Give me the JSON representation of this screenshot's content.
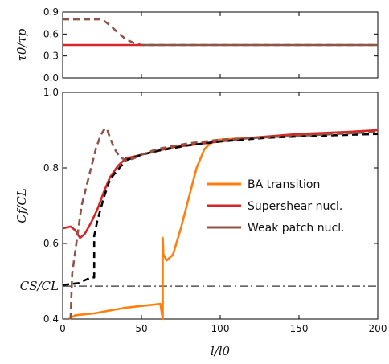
{
  "chart_data": [
    {
      "type": "line",
      "panel": "top",
      "ylabel": "τ0/τp",
      "xlim": [
        0,
        200
      ],
      "ylim": [
        0,
        0.9
      ],
      "yticks": [
        "0.0",
        "0.3",
        "0.6",
        "0.9"
      ],
      "grid": false,
      "series": [
        {
          "name": "Weak patch nucl.",
          "color": "#8c564b",
          "dash": true,
          "x": [
            0,
            12,
            25,
            30,
            35,
            40,
            45,
            50,
            200
          ],
          "y": [
            0.8,
            0.8,
            0.8,
            0.72,
            0.62,
            0.53,
            0.48,
            0.45,
            0.45
          ]
        },
        {
          "name": "Supershear nucl.",
          "color": "#d62728",
          "dash": false,
          "x": [
            0,
            50
          ],
          "y": [
            0.45,
            0.45
          ]
        },
        {
          "name": "Weak patch nucl.",
          "color": "#8c564b",
          "dash": false,
          "x": [
            50,
            200
          ],
          "y": [
            0.45,
            0.45
          ]
        }
      ]
    },
    {
      "type": "line",
      "panel": "bottom",
      "xlabel": "l/l0",
      "ylabel": "Cf/CL",
      "xlim": [
        0,
        200
      ],
      "ylim": [
        0.4,
        1.0
      ],
      "xticks": [
        "0",
        "50",
        "100",
        "150",
        "200"
      ],
      "yticks": [
        "0.4",
        "0.6",
        "0.8",
        "1.0"
      ],
      "grid": false,
      "legend_position": "center-right",
      "reference_line": {
        "label": "CS/CL",
        "y": 0.487,
        "color": "#555555",
        "style": "dash-dot"
      },
      "series": [
        {
          "name": "BA transition",
          "color": "#ff7f0e",
          "dash": false,
          "x": [
            4,
            8,
            20,
            40,
            62,
            63.5,
            63.5,
            64,
            66,
            70,
            75,
            80,
            85,
            90,
            95,
            100,
            120,
            140,
            160,
            180,
            200
          ],
          "y": [
            0.4,
            0.41,
            0.415,
            0.43,
            0.44,
            0.4,
            0.615,
            0.57,
            0.555,
            0.57,
            0.64,
            0.72,
            0.8,
            0.85,
            0.87,
            0.875,
            0.88,
            0.885,
            0.89,
            0.895,
            0.9
          ]
        },
        {
          "name": "Supershear nucl.",
          "color": "#d62728",
          "dash": false,
          "x": [
            0,
            5,
            8,
            11,
            14,
            18,
            22,
            26,
            30,
            35,
            40,
            50,
            60,
            70,
            80,
            100,
            120,
            150,
            180,
            200
          ],
          "y": [
            0.64,
            0.645,
            0.635,
            0.615,
            0.625,
            0.655,
            0.69,
            0.735,
            0.775,
            0.805,
            0.825,
            0.835,
            0.845,
            0.855,
            0.86,
            0.87,
            0.88,
            0.89,
            0.895,
            0.9
          ]
        },
        {
          "name": "",
          "color": "#000000",
          "dash": true,
          "x": [
            0,
            10,
            18,
            20,
            20,
            22,
            26,
            30,
            40,
            50,
            60,
            80,
            100,
            130,
            160,
            200
          ],
          "y": [
            0.49,
            0.495,
            0.51,
            0.51,
            0.62,
            0.66,
            0.72,
            0.77,
            0.82,
            0.835,
            0.845,
            0.86,
            0.87,
            0.88,
            0.885,
            0.89
          ]
        },
        {
          "name": "Weak patch nucl.",
          "color": "#8c564b",
          "dash": true,
          "x": [
            5,
            6,
            8,
            10,
            12,
            15,
            18,
            21,
            24,
            26,
            28,
            30,
            33,
            36,
            40,
            45,
            50,
            60,
            80,
            100,
            150,
            200
          ],
          "y": [
            0.4,
            0.52,
            0.58,
            0.64,
            0.7,
            0.75,
            0.8,
            0.85,
            0.885,
            0.9,
            0.905,
            0.88,
            0.85,
            0.83,
            0.82,
            0.825,
            0.835,
            0.85,
            0.865,
            0.875,
            0.885,
            0.895
          ]
        }
      ]
    }
  ]
}
